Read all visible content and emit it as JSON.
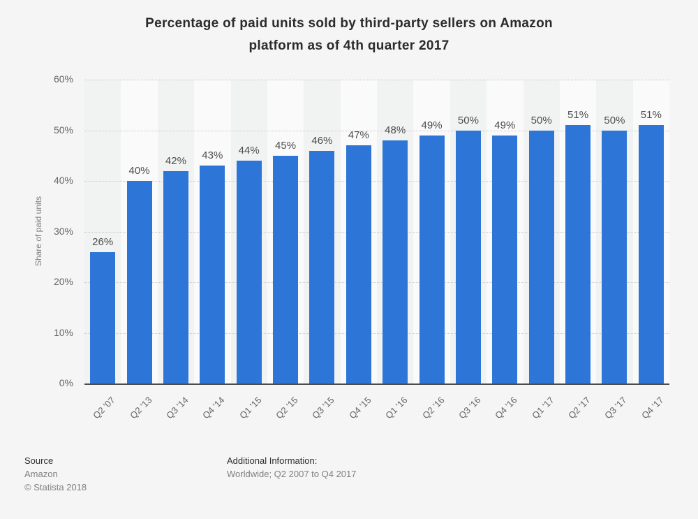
{
  "header": {
    "title": "Percentage of paid units sold by third-party sellers on Amazon\nplatform as of 4th quarter 2017"
  },
  "chart_data": {
    "type": "bar",
    "title": "Percentage of paid units sold by third-party sellers on Amazon platform as of 4th quarter 2017",
    "categories": [
      "Q2 '07",
      "Q2 '13",
      "Q3 '14",
      "Q4 '14",
      "Q1 '15",
      "Q2 '15",
      "Q3 '15",
      "Q4 '15",
      "Q1 '16",
      "Q2 '16",
      "Q3 '16",
      "Q4 '16",
      "Q1 '17",
      "Q2 '17",
      "Q3 '17",
      "Q4 '17"
    ],
    "values": [
      26,
      40,
      42,
      43,
      44,
      45,
      46,
      47,
      48,
      49,
      50,
      49,
      50,
      51,
      50,
      51
    ],
    "value_labels": [
      "26%",
      "40%",
      "42%",
      "43%",
      "44%",
      "45%",
      "46%",
      "47%",
      "48%",
      "49%",
      "50%",
      "49%",
      "50%",
      "51%",
      "50%",
      "51%"
    ],
    "xlabel": "",
    "ylabel": "Share of paid units",
    "ylim": [
      0,
      60
    ],
    "ytick_interval": 10,
    "yticks": [
      "0%",
      "10%",
      "20%",
      "30%",
      "40%",
      "50%",
      "60%"
    ],
    "grid": "horizontal-dotted",
    "legend": "none",
    "colors": {
      "bar": "#2d76d8",
      "background": "#f5f5f5",
      "band_even": "#f1f2f2",
      "band_odd": "#fafafa",
      "axis_line": "#4d4d4d",
      "gridline": "#c9c9c9",
      "title_text": "#2b2b2b",
      "value_label_text": "#4d4d4d",
      "tick_text": "#666666",
      "muted_text": "#808080"
    }
  },
  "footer": {
    "source_label": "Source",
    "source_value": "Amazon",
    "copyright": "© Statista 2018",
    "additional_info_label": "Additional Information:",
    "additional_info_value": "Worldwide; Q2 2007 to Q4 2017"
  }
}
